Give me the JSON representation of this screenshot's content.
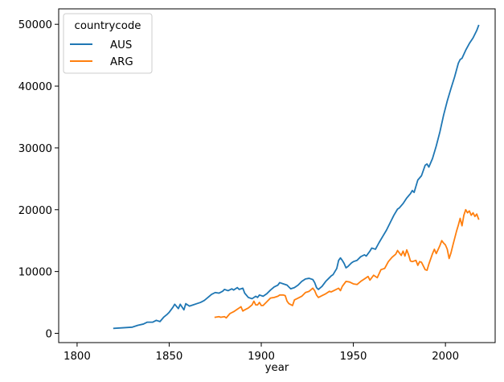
{
  "chart_data": {
    "type": "line",
    "title": "",
    "xlabel": "year",
    "ylabel": "",
    "xlim": [
      1790,
      2027
    ],
    "ylim": [
      -1500,
      52500
    ],
    "x_ticks": [
      1800,
      1850,
      1900,
      1950,
      2000
    ],
    "y_ticks": [
      0,
      10000,
      20000,
      30000,
      40000,
      50000
    ],
    "grid": false,
    "legend": {
      "title": "countrycode",
      "placement": "top-left"
    },
    "series": [
      {
        "name": "AUS",
        "color": "#1f77b4",
        "points": [
          [
            1820,
            800
          ],
          [
            1825,
            900
          ],
          [
            1830,
            1000
          ],
          [
            1833,
            1300
          ],
          [
            1836,
            1500
          ],
          [
            1838,
            1800
          ],
          [
            1841,
            1800
          ],
          [
            1843,
            2100
          ],
          [
            1845,
            1900
          ],
          [
            1847,
            2600
          ],
          [
            1849,
            3100
          ],
          [
            1850,
            3400
          ],
          [
            1852,
            4200
          ],
          [
            1853,
            4700
          ],
          [
            1855,
            4000
          ],
          [
            1856,
            4700
          ],
          [
            1858,
            3800
          ],
          [
            1859,
            4800
          ],
          [
            1861,
            4400
          ],
          [
            1863,
            4600
          ],
          [
            1865,
            4800
          ],
          [
            1867,
            5000
          ],
          [
            1869,
            5300
          ],
          [
            1871,
            5800
          ],
          [
            1873,
            6300
          ],
          [
            1875,
            6600
          ],
          [
            1877,
            6500
          ],
          [
            1879,
            6800
          ],
          [
            1880,
            7100
          ],
          [
            1882,
            6900
          ],
          [
            1884,
            7200
          ],
          [
            1885,
            7000
          ],
          [
            1887,
            7400
          ],
          [
            1888,
            7100
          ],
          [
            1890,
            7300
          ],
          [
            1891,
            6500
          ],
          [
            1893,
            5800
          ],
          [
            1895,
            5600
          ],
          [
            1897,
            6000
          ],
          [
            1898,
            5800
          ],
          [
            1899,
            6200
          ],
          [
            1901,
            6000
          ],
          [
            1903,
            6400
          ],
          [
            1905,
            7000
          ],
          [
            1907,
            7500
          ],
          [
            1909,
            7800
          ],
          [
            1910,
            8200
          ],
          [
            1912,
            8000
          ],
          [
            1914,
            7800
          ],
          [
            1915,
            7500
          ],
          [
            1916,
            7200
          ],
          [
            1918,
            7400
          ],
          [
            1920,
            7800
          ],
          [
            1922,
            8400
          ],
          [
            1924,
            8800
          ],
          [
            1926,
            8900
          ],
          [
            1928,
            8700
          ],
          [
            1929,
            8200
          ],
          [
            1930,
            7400
          ],
          [
            1931,
            7100
          ],
          [
            1933,
            7600
          ],
          [
            1935,
            8400
          ],
          [
            1937,
            9000
          ],
          [
            1938,
            9300
          ],
          [
            1939,
            9500
          ],
          [
            1941,
            10500
          ],
          [
            1942,
            11800
          ],
          [
            1943,
            12200
          ],
          [
            1944,
            11800
          ],
          [
            1945,
            11300
          ],
          [
            1946,
            10600
          ],
          [
            1947,
            10800
          ],
          [
            1949,
            11400
          ],
          [
            1950,
            11600
          ],
          [
            1952,
            11800
          ],
          [
            1954,
            12400
          ],
          [
            1956,
            12700
          ],
          [
            1957,
            12500
          ],
          [
            1959,
            13300
          ],
          [
            1960,
            13800
          ],
          [
            1962,
            13600
          ],
          [
            1964,
            14700
          ],
          [
            1966,
            15700
          ],
          [
            1968,
            16700
          ],
          [
            1970,
            17900
          ],
          [
            1972,
            19100
          ],
          [
            1974,
            20100
          ],
          [
            1975,
            20300
          ],
          [
            1977,
            21000
          ],
          [
            1979,
            21900
          ],
          [
            1981,
            22600
          ],
          [
            1982,
            23100
          ],
          [
            1983,
            22800
          ],
          [
            1985,
            24800
          ],
          [
            1987,
            25500
          ],
          [
            1989,
            27200
          ],
          [
            1990,
            27400
          ],
          [
            1991,
            26900
          ],
          [
            1993,
            28300
          ],
          [
            1995,
            30300
          ],
          [
            1997,
            32600
          ],
          [
            1999,
            35300
          ],
          [
            2001,
            37600
          ],
          [
            2003,
            39600
          ],
          [
            2005,
            41500
          ],
          [
            2007,
            43700
          ],
          [
            2008,
            44300
          ],
          [
            2009,
            44500
          ],
          [
            2011,
            45800
          ],
          [
            2013,
            46900
          ],
          [
            2015,
            47800
          ],
          [
            2017,
            49000
          ],
          [
            2018,
            49800
          ]
        ]
      },
      {
        "name": "ARG",
        "color": "#ff7f0e",
        "points": [
          [
            1875,
            2600
          ],
          [
            1877,
            2700
          ],
          [
            1878,
            2600
          ],
          [
            1880,
            2700
          ],
          [
            1881,
            2500
          ],
          [
            1883,
            3200
          ],
          [
            1885,
            3500
          ],
          [
            1887,
            3900
          ],
          [
            1889,
            4300
          ],
          [
            1890,
            3600
          ],
          [
            1891,
            3800
          ],
          [
            1893,
            4100
          ],
          [
            1895,
            4600
          ],
          [
            1896,
            5200
          ],
          [
            1897,
            4600
          ],
          [
            1898,
            4600
          ],
          [
            1899,
            5000
          ],
          [
            1900,
            4500
          ],
          [
            1901,
            4500
          ],
          [
            1903,
            5100
          ],
          [
            1905,
            5700
          ],
          [
            1907,
            5800
          ],
          [
            1909,
            6000
          ],
          [
            1910,
            6200
          ],
          [
            1912,
            6200
          ],
          [
            1913,
            6100
          ],
          [
            1914,
            5200
          ],
          [
            1915,
            4800
          ],
          [
            1917,
            4500
          ],
          [
            1918,
            5400
          ],
          [
            1920,
            5700
          ],
          [
            1922,
            6000
          ],
          [
            1924,
            6600
          ],
          [
            1926,
            6800
          ],
          [
            1928,
            7300
          ],
          [
            1929,
            6900
          ],
          [
            1930,
            6200
          ],
          [
            1931,
            5800
          ],
          [
            1933,
            6100
          ],
          [
            1935,
            6400
          ],
          [
            1937,
            6800
          ],
          [
            1938,
            6700
          ],
          [
            1940,
            7000
          ],
          [
            1942,
            7300
          ],
          [
            1943,
            6900
          ],
          [
            1944,
            7600
          ],
          [
            1946,
            8400
          ],
          [
            1948,
            8300
          ],
          [
            1950,
            8000
          ],
          [
            1952,
            7900
          ],
          [
            1954,
            8400
          ],
          [
            1956,
            8800
          ],
          [
            1958,
            9200
          ],
          [
            1959,
            8600
          ],
          [
            1961,
            9400
          ],
          [
            1963,
            9000
          ],
          [
            1965,
            10300
          ],
          [
            1967,
            10500
          ],
          [
            1969,
            11600
          ],
          [
            1971,
            12300
          ],
          [
            1973,
            12800
          ],
          [
            1974,
            13400
          ],
          [
            1975,
            13000
          ],
          [
            1976,
            12600
          ],
          [
            1977,
            13300
          ],
          [
            1978,
            12500
          ],
          [
            1979,
            13500
          ],
          [
            1980,
            12700
          ],
          [
            1981,
            11700
          ],
          [
            1982,
            11600
          ],
          [
            1984,
            11800
          ],
          [
            1985,
            11000
          ],
          [
            1986,
            11600
          ],
          [
            1987,
            11500
          ],
          [
            1988,
            10900
          ],
          [
            1989,
            10300
          ],
          [
            1990,
            10200
          ],
          [
            1991,
            11200
          ],
          [
            1993,
            12900
          ],
          [
            1994,
            13600
          ],
          [
            1995,
            12900
          ],
          [
            1997,
            14200
          ],
          [
            1998,
            15000
          ],
          [
            1999,
            14600
          ],
          [
            2000,
            14300
          ],
          [
            2001,
            13600
          ],
          [
            2002,
            12100
          ],
          [
            2003,
            13000
          ],
          [
            2004,
            14200
          ],
          [
            2006,
            16500
          ],
          [
            2007,
            17500
          ],
          [
            2008,
            18600
          ],
          [
            2009,
            17400
          ],
          [
            2010,
            19100
          ],
          [
            2011,
            20000
          ],
          [
            2012,
            19500
          ],
          [
            2013,
            19800
          ],
          [
            2014,
            19100
          ],
          [
            2015,
            19500
          ],
          [
            2016,
            18900
          ],
          [
            2017,
            19300
          ],
          [
            2018,
            18500
          ]
        ]
      }
    ]
  }
}
